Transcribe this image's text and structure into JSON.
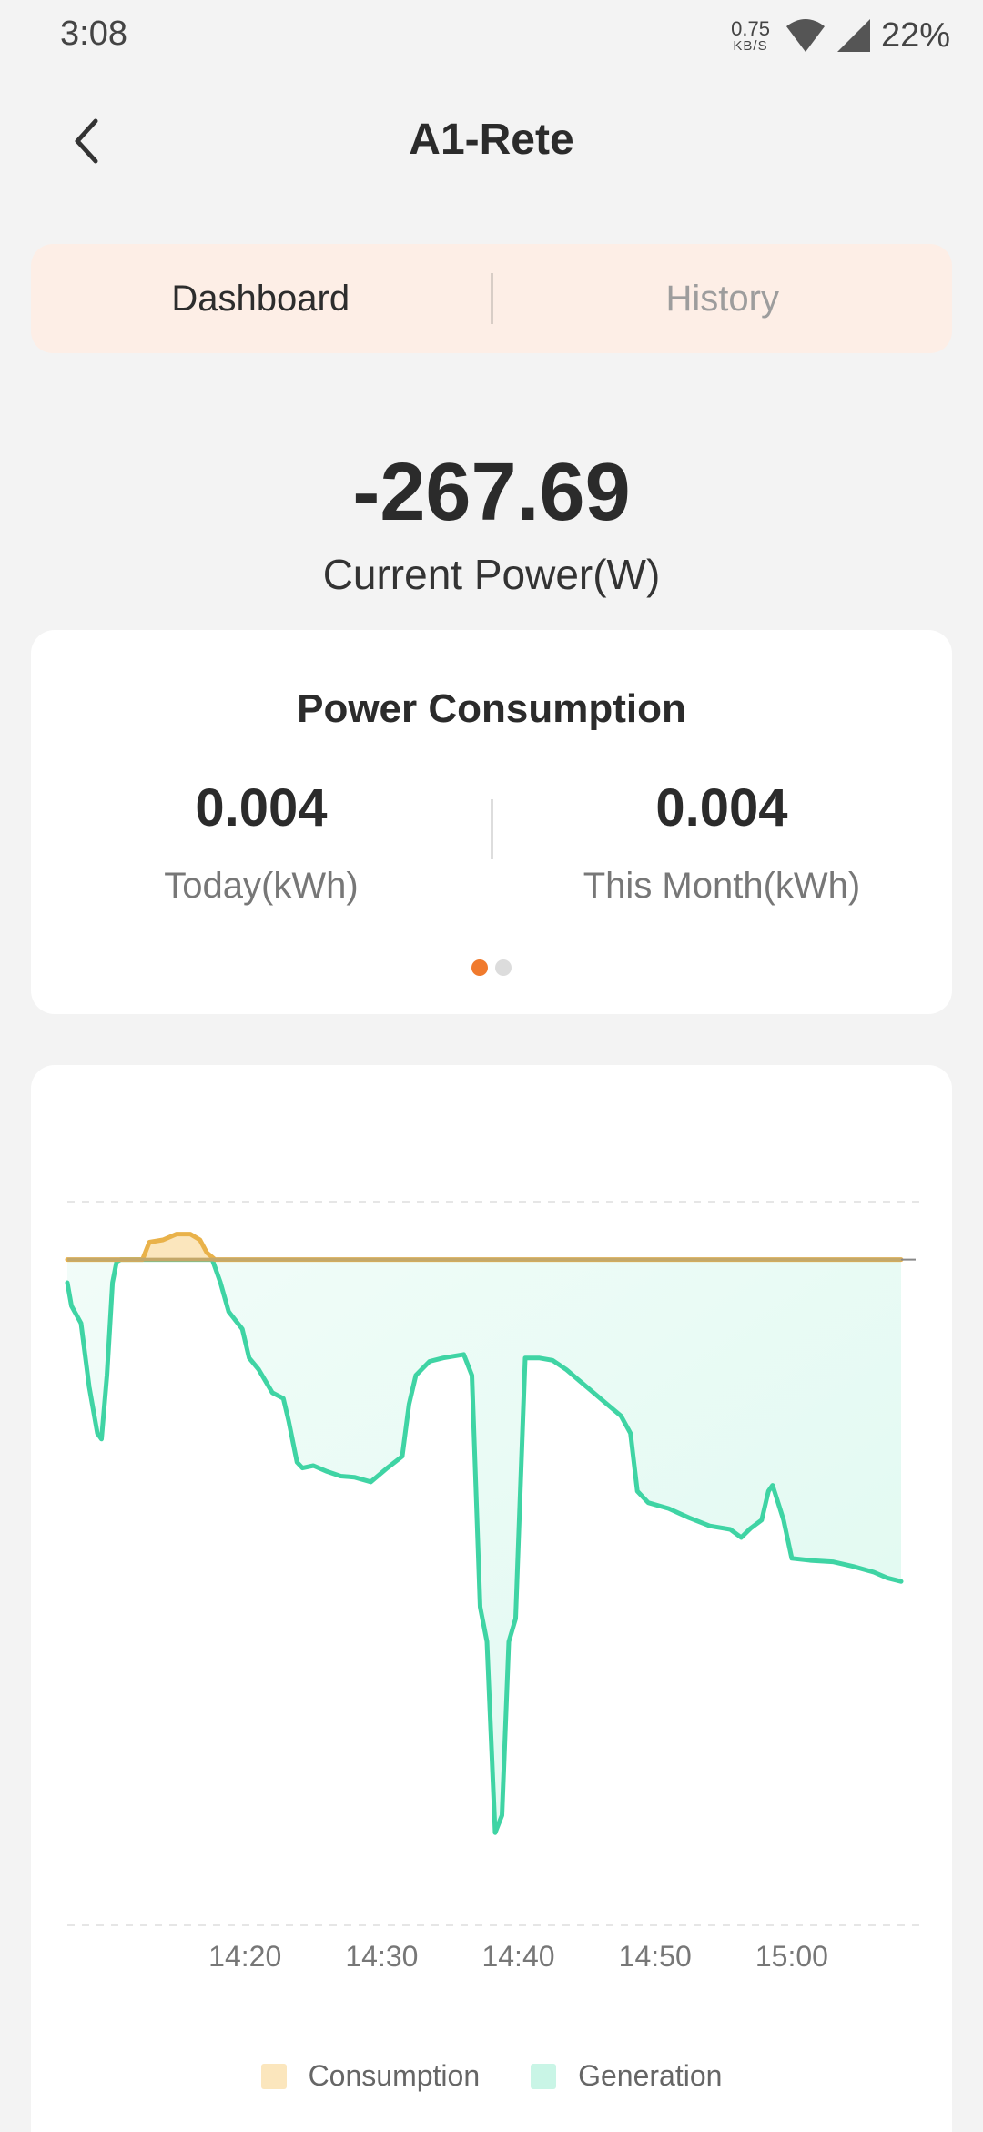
{
  "status_bar": {
    "time": "3:08",
    "net_speed_value": "0.75",
    "net_speed_unit": "KB/S",
    "battery": "22%"
  },
  "header": {
    "back_icon": "chevron-left-icon",
    "title": "A1-Rete"
  },
  "tabs": [
    {
      "label": "Dashboard",
      "active": true
    },
    {
      "label": "History",
      "active": false
    }
  ],
  "current_power": {
    "value": "-267.69",
    "label": "Current Power(W)"
  },
  "power_consumption": {
    "title": "Power Consumption",
    "today_value": "0.004",
    "today_label": "Today(kWh)",
    "month_value": "0.004",
    "month_label": "This Month(kWh)",
    "pager": {
      "count": 2,
      "active_index": 0
    }
  },
  "colors": {
    "accent": "#f07a2d",
    "consumption_line": "#e9b24a",
    "consumption_fill": "#fbe6bd",
    "generation_line": "#3fd4a4",
    "generation_fill": "#c9f5e6",
    "zero_line": "#c4a86a"
  },
  "chart_data": {
    "type": "area",
    "x_tick_labels": [
      "14:20",
      "14:30",
      "14:40",
      "14:50",
      "15:00"
    ],
    "grid": "dashed horizontal top and bottom",
    "legend_position": "bottom",
    "series": [
      {
        "name": "Consumption",
        "values": [
          [
            0,
            0
          ],
          [
            5.5,
            0
          ],
          [
            6,
            15
          ],
          [
            7,
            17
          ],
          [
            8,
            22
          ],
          [
            9,
            22
          ],
          [
            9.7,
            17
          ],
          [
            10.2,
            6
          ],
          [
            10.8,
            0
          ],
          [
            61,
            0
          ]
        ]
      },
      {
        "name": "Generation",
        "values": [
          [
            0,
            -20
          ],
          [
            0.3,
            -40
          ],
          [
            1,
            -55
          ],
          [
            1.6,
            -110
          ],
          [
            2.2,
            -150
          ],
          [
            2.5,
            -155
          ],
          [
            2.9,
            -100
          ],
          [
            3.3,
            -20
          ],
          [
            3.6,
            -2
          ],
          [
            3.9,
            0
          ],
          [
            10.6,
            0
          ],
          [
            11.2,
            -20
          ],
          [
            11.8,
            -45
          ],
          [
            12.8,
            -60
          ],
          [
            13.3,
            -85
          ],
          [
            14,
            -95
          ],
          [
            15,
            -115
          ],
          [
            15.8,
            -120
          ],
          [
            16.2,
            -140
          ],
          [
            16.8,
            -175
          ],
          [
            17.2,
            -180
          ],
          [
            18,
            -178
          ],
          [
            19,
            -183
          ],
          [
            20,
            -187
          ],
          [
            21,
            -188
          ],
          [
            22.2,
            -192
          ],
          [
            23.4,
            -180
          ],
          [
            24.5,
            -170
          ],
          [
            25,
            -125
          ],
          [
            25.5,
            -100
          ],
          [
            26.5,
            -88
          ],
          [
            27.5,
            -85
          ],
          [
            29,
            -82
          ],
          [
            29.6,
            -100
          ],
          [
            30.2,
            -300
          ],
          [
            30.7,
            -330
          ],
          [
            31.3,
            -495
          ],
          [
            31.8,
            -480
          ],
          [
            32.3,
            -330
          ],
          [
            32.8,
            -310
          ],
          [
            33.5,
            -85
          ],
          [
            34.5,
            -85
          ],
          [
            35.5,
            -87
          ],
          [
            36.5,
            -95
          ],
          [
            37.5,
            -105
          ],
          [
            38.5,
            -115
          ],
          [
            39.5,
            -125
          ],
          [
            40.5,
            -135
          ],
          [
            41.2,
            -150
          ],
          [
            41.7,
            -200
          ],
          [
            42.5,
            -210
          ],
          [
            44,
            -215
          ],
          [
            45.5,
            -223
          ],
          [
            47,
            -230
          ],
          [
            48.5,
            -233
          ],
          [
            49.3,
            -240
          ],
          [
            50,
            -232
          ],
          [
            50.8,
            -225
          ],
          [
            51.3,
            -200
          ],
          [
            51.6,
            -195
          ],
          [
            52,
            -210
          ],
          [
            52.4,
            -225
          ],
          [
            53,
            -258
          ],
          [
            54.5,
            -260
          ],
          [
            56,
            -261
          ],
          [
            57.5,
            -265
          ],
          [
            59,
            -270
          ],
          [
            60,
            -275
          ],
          [
            61,
            -278
          ]
        ]
      }
    ],
    "ylim": [
      -575,
      50
    ],
    "xlim": [
      0,
      61
    ]
  },
  "legend": [
    {
      "label": "Consumption"
    },
    {
      "label": "Generation"
    }
  ]
}
